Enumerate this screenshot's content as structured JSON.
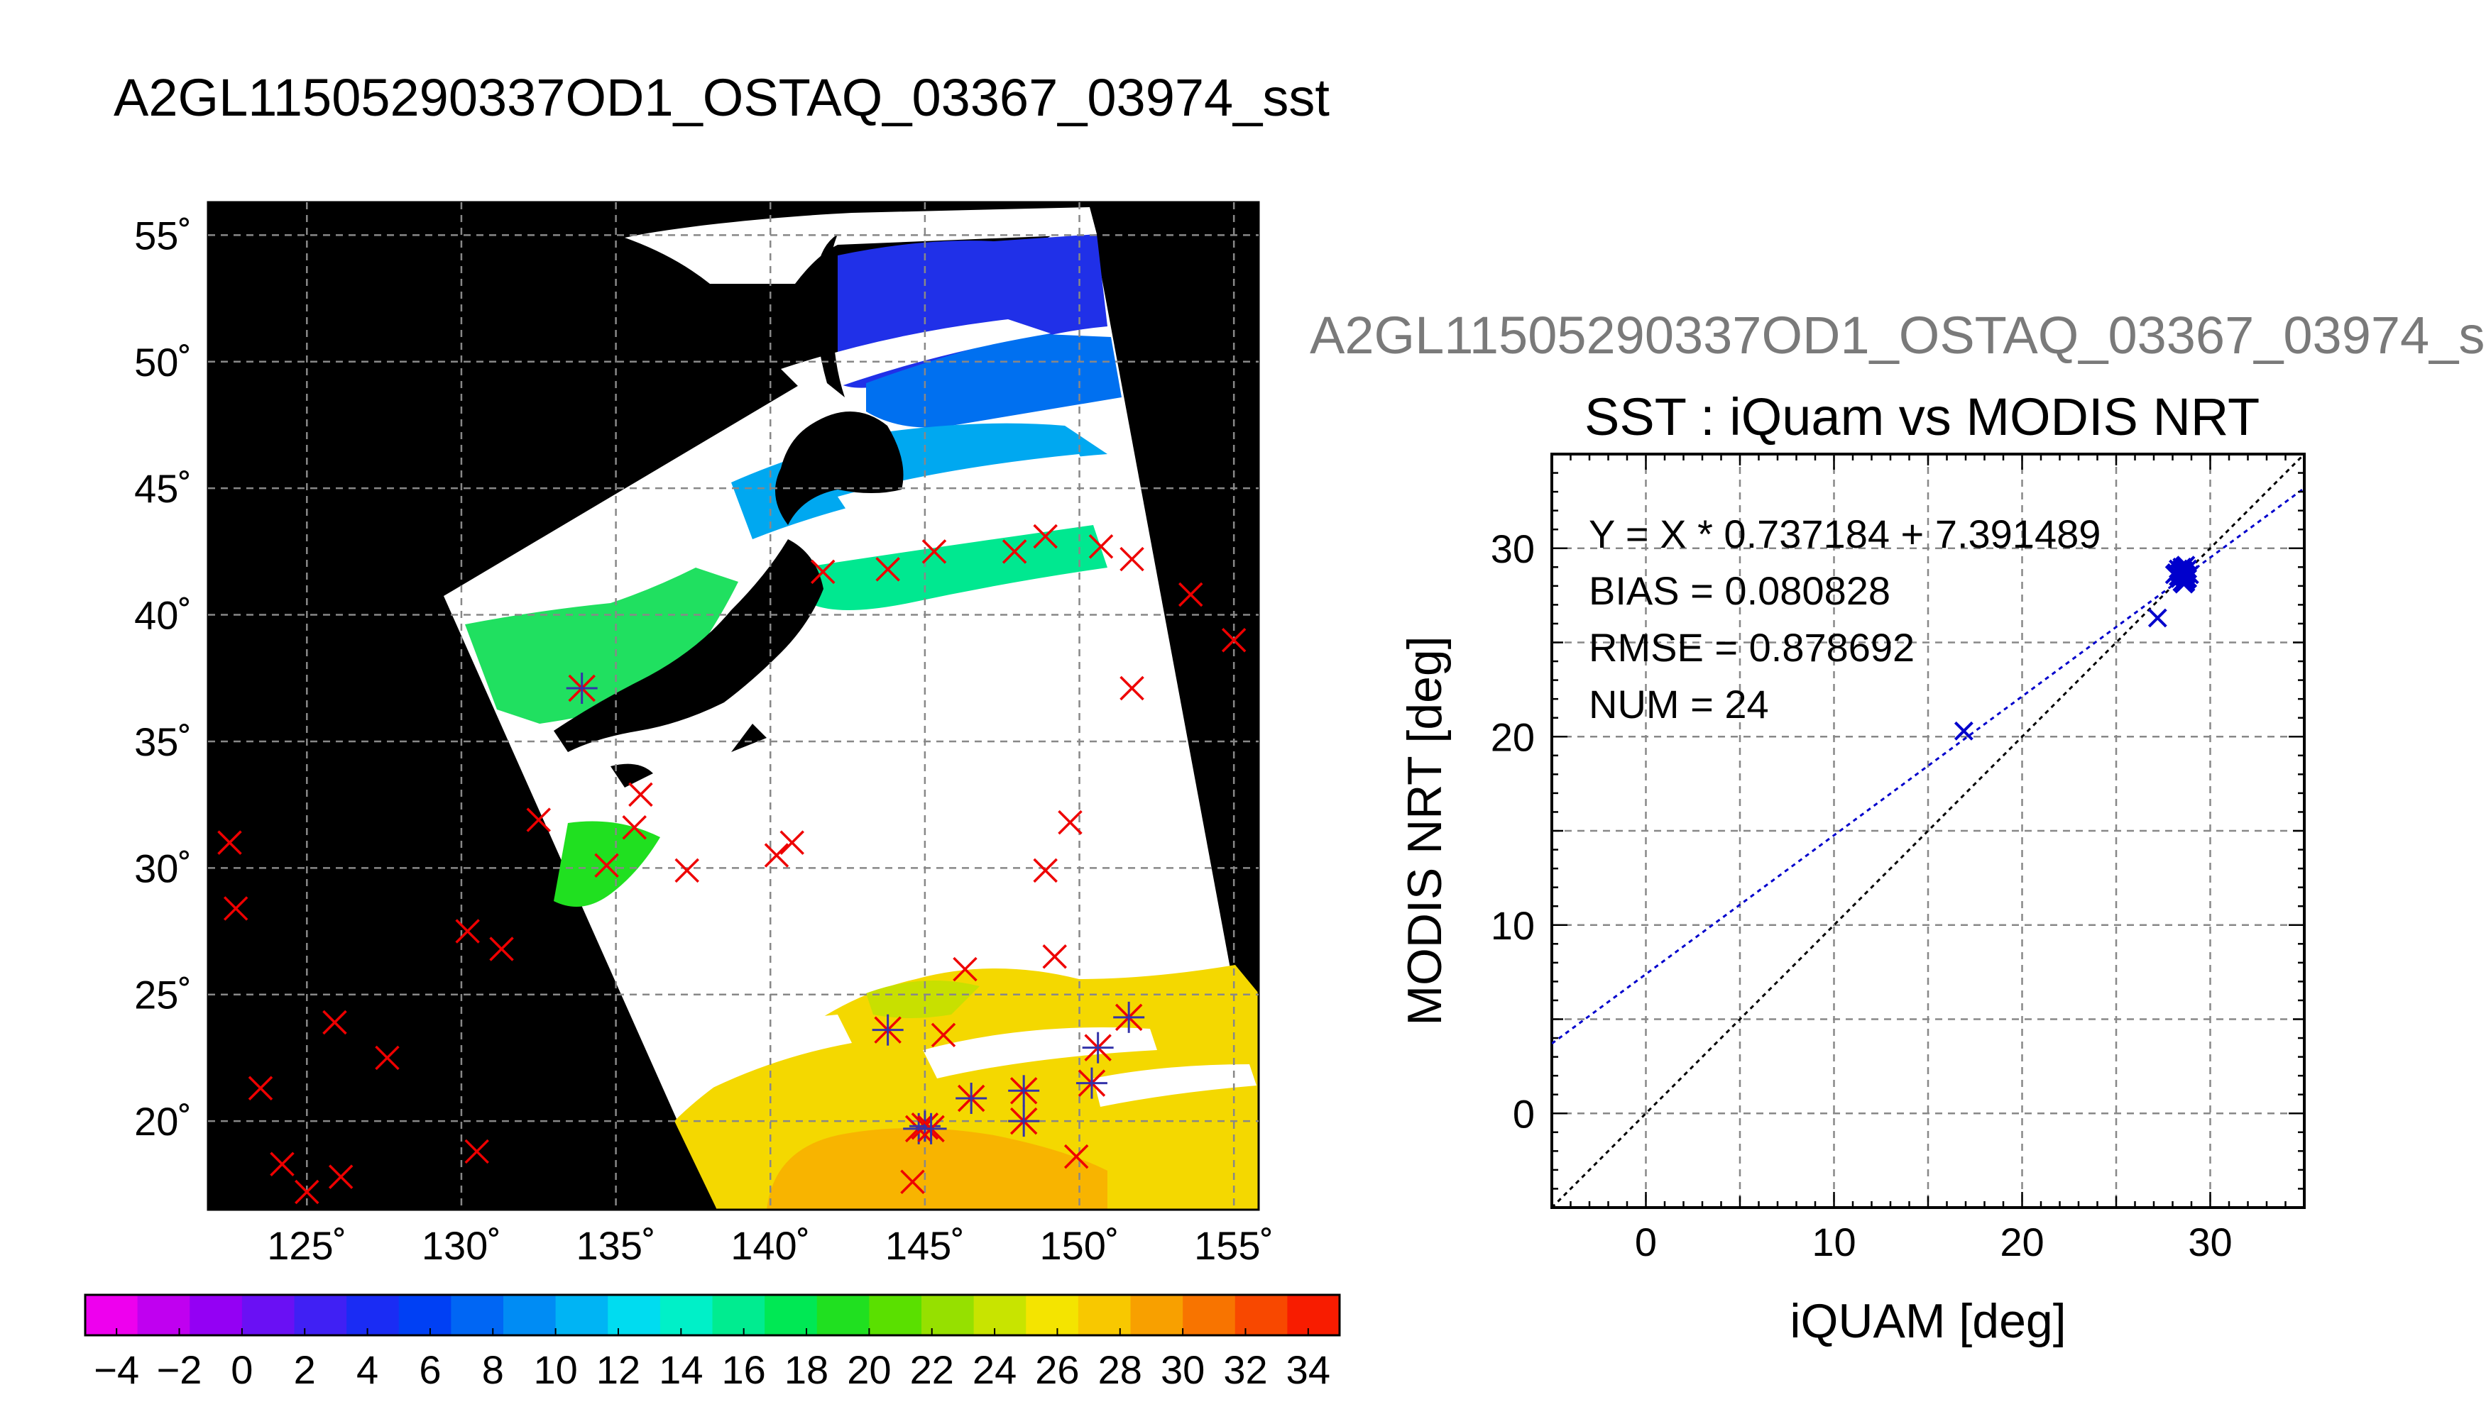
{
  "header": {
    "title": "A2GL11505290337OD1_OSTAQ_03367_03974_sst",
    "subtitle": "A2GL11505290337OD1_OSTAQ_03367_03974_s"
  },
  "chart_data": [
    {
      "type": "map",
      "lat_labels": [
        "55˚",
        "50˚",
        "45˚",
        "40˚",
        "35˚",
        "30˚",
        "25˚",
        "20˚"
      ],
      "lon_labels": [
        "125˚",
        "130˚",
        "135˚",
        "140˚",
        "145˚",
        "150˚",
        "155˚"
      ],
      "lat_range": [
        16.5,
        56.3
      ],
      "lon_range": [
        121.8,
        155.8
      ],
      "grid": true,
      "colorbar": {
        "range": [
          -5,
          35
        ],
        "tick_labels": [
          "−4",
          "−2",
          "0",
          "2",
          "4",
          "6",
          "8",
          "10",
          "12",
          "14",
          "16",
          "18",
          "20",
          "22",
          "24",
          "26",
          "28",
          "30",
          "32",
          "34"
        ],
        "colors": [
          "#ee00ee",
          "#c000f0",
          "#9400f4",
          "#6a10f4",
          "#4020f4",
          "#1a2cf4",
          "#0040f4",
          "#0066f4",
          "#008cf4",
          "#00b4f4",
          "#00dcf0",
          "#00f0c8",
          "#00ec90",
          "#00e854",
          "#20e020",
          "#5ae000",
          "#96e000",
          "#c8e400",
          "#f4e400",
          "#f8c800",
          "#f8a000",
          "#f87400",
          "#f84800",
          "#f81c00"
        ]
      },
      "observations": [
        {
          "lon": 122.5,
          "lat": 31.0,
          "matched": false
        },
        {
          "lon": 122.7,
          "lat": 28.4,
          "matched": false
        },
        {
          "lon": 123.5,
          "lat": 21.3,
          "matched": false
        },
        {
          "lon": 124.2,
          "lat": 18.3,
          "matched": false
        },
        {
          "lon": 125.0,
          "lat": 17.2,
          "matched": false
        },
        {
          "lon": 125.9,
          "lat": 23.9,
          "matched": false
        },
        {
          "lon": 126.1,
          "lat": 17.8,
          "matched": false
        },
        {
          "lon": 127.6,
          "lat": 22.5,
          "matched": false
        },
        {
          "lon": 130.2,
          "lat": 27.5,
          "matched": false
        },
        {
          "lon": 130.5,
          "lat": 18.8,
          "matched": false
        },
        {
          "lon": 131.3,
          "lat": 26.8,
          "matched": false
        },
        {
          "lon": 132.5,
          "lat": 31.9,
          "matched": false
        },
        {
          "lon": 133.9,
          "lat": 37.1,
          "matched": true
        },
        {
          "lon": 134.7,
          "lat": 30.1,
          "matched": false
        },
        {
          "lon": 135.6,
          "lat": 31.6,
          "matched": false
        },
        {
          "lon": 135.8,
          "lat": 32.9,
          "matched": false
        },
        {
          "lon": 137.3,
          "lat": 29.9,
          "matched": false
        },
        {
          "lon": 140.2,
          "lat": 30.5,
          "matched": false
        },
        {
          "lon": 140.7,
          "lat": 31.0,
          "matched": false
        },
        {
          "lon": 141.7,
          "lat": 41.7,
          "matched": false
        },
        {
          "lon": 143.8,
          "lat": 41.8,
          "matched": false
        },
        {
          "lon": 143.8,
          "lat": 23.6,
          "matched": true
        },
        {
          "lon": 144.6,
          "lat": 17.6,
          "matched": false
        },
        {
          "lon": 144.8,
          "lat": 19.7,
          "matched": true
        },
        {
          "lon": 145.0,
          "lat": 19.8,
          "matched": true
        },
        {
          "lon": 145.2,
          "lat": 19.7,
          "matched": true
        },
        {
          "lon": 145.3,
          "lat": 42.5,
          "matched": false
        },
        {
          "lon": 145.6,
          "lat": 23.4,
          "matched": false
        },
        {
          "lon": 146.3,
          "lat": 26.0,
          "matched": false
        },
        {
          "lon": 146.5,
          "lat": 20.9,
          "matched": true
        },
        {
          "lon": 147.9,
          "lat": 42.5,
          "matched": false
        },
        {
          "lon": 148.2,
          "lat": 21.2,
          "matched": true
        },
        {
          "lon": 148.2,
          "lat": 20.0,
          "matched": true
        },
        {
          "lon": 148.9,
          "lat": 43.1,
          "matched": false
        },
        {
          "lon": 148.9,
          "lat": 29.9,
          "matched": false
        },
        {
          "lon": 149.2,
          "lat": 26.5,
          "matched": false
        },
        {
          "lon": 149.7,
          "lat": 31.8,
          "matched": false
        },
        {
          "lon": 149.9,
          "lat": 18.6,
          "matched": false
        },
        {
          "lon": 150.4,
          "lat": 21.5,
          "matched": true
        },
        {
          "lon": 150.6,
          "lat": 22.9,
          "matched": true
        },
        {
          "lon": 150.7,
          "lat": 42.7,
          "matched": false
        },
        {
          "lon": 151.6,
          "lat": 24.1,
          "matched": true
        },
        {
          "lon": 151.7,
          "lat": 42.2,
          "matched": false
        },
        {
          "lon": 151.7,
          "lat": 37.1,
          "matched": false
        },
        {
          "lon": 153.6,
          "lat": 40.8,
          "matched": false
        },
        {
          "lon": 155.0,
          "lat": 39.0,
          "matched": false
        }
      ]
    },
    {
      "type": "scatter",
      "title": "SST : iQuam vs MODIS NRT",
      "xlabel": "iQUAM [deg]",
      "ylabel": "MODIS NRT [deg]",
      "xlim": [
        -5,
        35
      ],
      "ylim": [
        -5,
        35
      ],
      "xticks": [
        0,
        10,
        20,
        30
      ],
      "yticks": [
        0,
        10,
        20,
        30
      ],
      "grid": true,
      "stats": {
        "equation": "Y = X * 0.737184 + 7.391489",
        "bias": "BIAS = 0.080828",
        "rmse": "RMSE = 0.878692",
        "num": "NUM = 24"
      },
      "regression": {
        "slope": 0.737184,
        "intercept": 7.391489,
        "color": "#0000cc"
      },
      "identity_line": {
        "color": "#000000"
      },
      "x": [
        16.9,
        27.2,
        28.1,
        28.3,
        28.4,
        28.4,
        28.5,
        28.5,
        28.6,
        28.6,
        28.6,
        28.7,
        28.7,
        28.7,
        28.8,
        28.8,
        28.5,
        28.3,
        28.6,
        28.4,
        28.7,
        28.9,
        28.2,
        28.5
      ],
      "y": [
        20.3,
        26.3,
        28.6,
        28.9,
        28.4,
        28.7,
        29.0,
        28.2,
        28.8,
        28.5,
        28.1,
        29.1,
        28.6,
        28.3,
        28.9,
        28.4,
        28.7,
        28.5,
        29.0,
        28.8,
        28.2,
        28.6,
        28.7,
        28.9
      ],
      "marker_color": "#0000cc"
    }
  ]
}
